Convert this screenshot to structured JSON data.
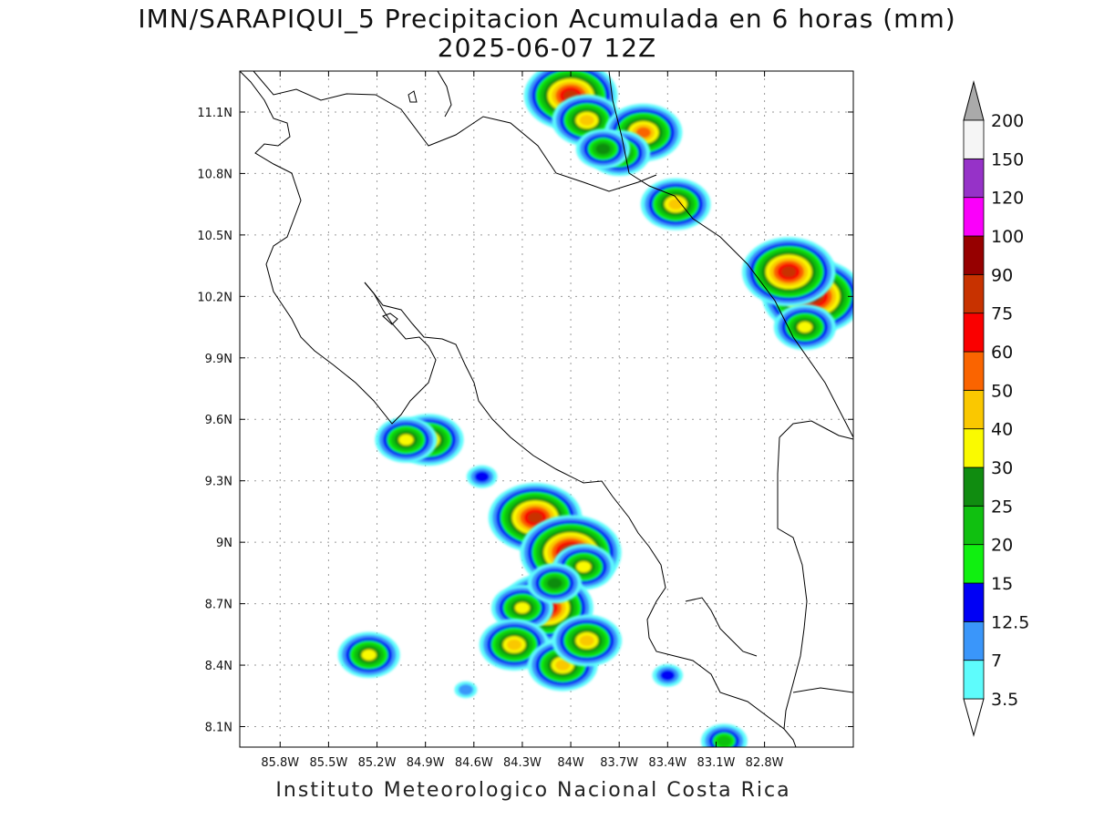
{
  "title_line1": "IMN/SARAPIQUI_5 Precipitacion Acumulada en 6 horas (mm)",
  "title_line2": "2025-06-07 12Z",
  "footer": "Instituto Meteorologico Nacional Costa Rica",
  "map": {
    "lon_range": [
      -86.05,
      -82.25
    ],
    "lat_range": [
      8.0,
      11.3
    ],
    "lat_ticks": [
      {
        "value": 11.1,
        "label": "11.1N"
      },
      {
        "value": 10.8,
        "label": "10.8N"
      },
      {
        "value": 10.5,
        "label": "10.5N"
      },
      {
        "value": 10.2,
        "label": "10.2N"
      },
      {
        "value": 9.9,
        "label": "9.9N"
      },
      {
        "value": 9.6,
        "label": "9.6N"
      },
      {
        "value": 9.3,
        "label": "9.3N"
      },
      {
        "value": 9.0,
        "label": "9N"
      },
      {
        "value": 8.7,
        "label": "8.7N"
      },
      {
        "value": 8.4,
        "label": "8.4N"
      },
      {
        "value": 8.1,
        "label": "8.1N"
      }
    ],
    "lon_ticks": [
      {
        "value": -85.8,
        "label": "85.8W"
      },
      {
        "value": -85.5,
        "label": "85.5W"
      },
      {
        "value": -85.2,
        "label": "85.2W"
      },
      {
        "value": -84.9,
        "label": "84.9W"
      },
      {
        "value": -84.6,
        "label": "84.6W"
      },
      {
        "value": -84.3,
        "label": "84.3W"
      },
      {
        "value": -84.0,
        "label": "84W"
      },
      {
        "value": -83.7,
        "label": "83.7W"
      },
      {
        "value": -83.4,
        "label": "83.4W"
      },
      {
        "value": -83.1,
        "label": "83.1W"
      },
      {
        "value": -82.8,
        "label": "82.8W"
      }
    ],
    "gridlines": true
  },
  "colorbar": {
    "levels": [
      "3.5",
      "7",
      "12.5",
      "15",
      "20",
      "25",
      "30",
      "40",
      "50",
      "60",
      "75",
      "90",
      "100",
      "120",
      "150",
      "200"
    ],
    "colors": [
      "#5efcfc",
      "#3a96fa",
      "#0000f5",
      "#10f010",
      "#10c010",
      "#108c10",
      "#fafa00",
      "#fac800",
      "#fa6400",
      "#fa0000",
      "#c83200",
      "#960000",
      "#fa00fa",
      "#9632c8",
      "#f5f5f5",
      "#aaaaaa"
    ]
  },
  "precip_cells": [
    {
      "lon": -84.0,
      "lat": 11.18,
      "level": 10
    },
    {
      "lon": -83.9,
      "lat": 11.06,
      "level": 7
    },
    {
      "lon": -83.55,
      "lat": 11.0,
      "level": 8
    },
    {
      "lon": -83.7,
      "lat": 10.9,
      "level": 6
    },
    {
      "lon": -83.35,
      "lat": 10.65,
      "level": 7
    },
    {
      "lon": -83.8,
      "lat": 10.92,
      "level": 5
    },
    {
      "lon": -82.5,
      "lat": 10.2,
      "level": 11
    },
    {
      "lon": -82.65,
      "lat": 10.32,
      "level": 10
    },
    {
      "lon": -82.55,
      "lat": 10.05,
      "level": 6
    },
    {
      "lon": -84.22,
      "lat": 9.12,
      "level": 10
    },
    {
      "lon": -84.0,
      "lat": 8.95,
      "level": 11
    },
    {
      "lon": -83.92,
      "lat": 8.88,
      "level": 6
    },
    {
      "lon": -84.15,
      "lat": 8.68,
      "level": 10
    },
    {
      "lon": -84.3,
      "lat": 8.68,
      "level": 6
    },
    {
      "lon": -84.35,
      "lat": 8.5,
      "level": 7
    },
    {
      "lon": -84.05,
      "lat": 8.4,
      "level": 7
    },
    {
      "lon": -83.9,
      "lat": 8.52,
      "level": 7
    },
    {
      "lon": -84.1,
      "lat": 8.8,
      "level": 5
    },
    {
      "lon": -84.88,
      "lat": 9.5,
      "level": 7
    },
    {
      "lon": -85.02,
      "lat": 9.5,
      "level": 6
    },
    {
      "lon": -85.25,
      "lat": 8.45,
      "level": 6
    },
    {
      "lon": -84.55,
      "lat": 9.32,
      "level": 2
    },
    {
      "lon": -84.65,
      "lat": 8.28,
      "level": 1
    },
    {
      "lon": -83.4,
      "lat": 8.35,
      "level": 2
    },
    {
      "lon": -83.05,
      "lat": 8.03,
      "level": 4
    }
  ]
}
